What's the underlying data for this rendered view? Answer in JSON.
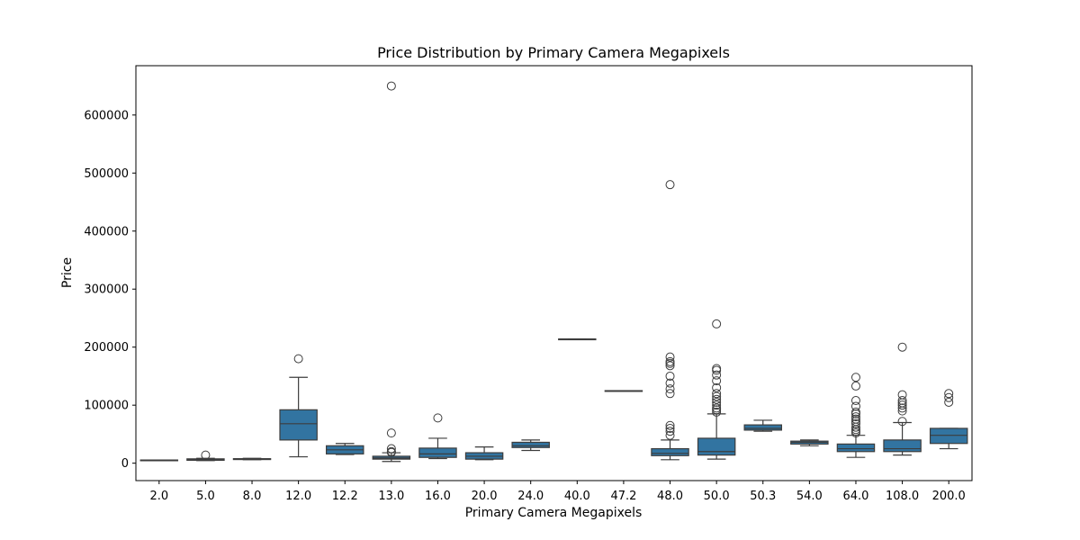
{
  "chart_data": {
    "type": "box",
    "title": "Price Distribution by Primary Camera Megapixels",
    "xlabel": "Primary Camera Megapixels",
    "ylabel": "Price",
    "ylim": [
      -30000,
      685000
    ],
    "yticks": [
      0,
      100000,
      200000,
      300000,
      400000,
      500000,
      600000
    ],
    "grid": false,
    "box_color": "#3274a1",
    "line_color": "#3d3d3d",
    "categories": [
      "2.0",
      "5.0",
      "8.0",
      "12.0",
      "12.2",
      "13.0",
      "16.0",
      "20.0",
      "24.0",
      "40.0",
      "47.2",
      "48.0",
      "50.0",
      "50.3",
      "54.0",
      "64.0",
      "108.0",
      "200.0"
    ],
    "boxes": [
      {
        "category": "2.0",
        "whislo": 5000,
        "q1": 5000,
        "med": 5300,
        "q3": 5500,
        "whishi": 5600,
        "fliers": []
      },
      {
        "category": "5.0",
        "whislo": 4500,
        "q1": 5000,
        "med": 6000,
        "q3": 7500,
        "whishi": 8500,
        "fliers": [
          14000
        ]
      },
      {
        "category": "8.0",
        "whislo": 6000,
        "q1": 6300,
        "med": 7000,
        "q3": 7800,
        "whishi": 8500,
        "fliers": []
      },
      {
        "category": "12.0",
        "whislo": 11000,
        "q1": 40000,
        "med": 68000,
        "q3": 92000,
        "whishi": 148000,
        "fliers": [
          180000
        ]
      },
      {
        "category": "12.2",
        "whislo": 15000,
        "q1": 16000,
        "med": 23000,
        "q3": 30000,
        "whishi": 34000,
        "fliers": []
      },
      {
        "category": "13.0",
        "whislo": 3000,
        "q1": 7000,
        "med": 9000,
        "q3": 12000,
        "whishi": 18000,
        "fliers": [
          18500,
          20000,
          25000,
          52000,
          650000
        ]
      },
      {
        "category": "16.0",
        "whislo": 8000,
        "q1": 10000,
        "med": 16000,
        "q3": 26000,
        "whishi": 43000,
        "fliers": [
          78000
        ]
      },
      {
        "category": "20.0",
        "whislo": 6000,
        "q1": 7000,
        "med": 12000,
        "q3": 18000,
        "whishi": 28000,
        "fliers": []
      },
      {
        "category": "24.0",
        "whislo": 22000,
        "q1": 27000,
        "med": 30000,
        "q3": 36000,
        "whishi": 40000,
        "fliers": []
      },
      {
        "category": "40.0",
        "whislo": 214000,
        "q1": 214000,
        "med": 214000,
        "q3": 214000,
        "whishi": 214000,
        "fliers": []
      },
      {
        "category": "47.2",
        "whislo": 125000,
        "q1": 125000,
        "med": 125000,
        "q3": 125000,
        "whishi": 125000,
        "fliers": []
      },
      {
        "category": "48.0",
        "whislo": 6000,
        "q1": 13000,
        "med": 17000,
        "q3": 25000,
        "whishi": 40000,
        "fliers": [
          48000,
          55000,
          60000,
          65000,
          120000,
          128000,
          138000,
          150000,
          168000,
          172000,
          175000,
          183000,
          480000
        ]
      },
      {
        "category": "50.0",
        "whislo": 7000,
        "q1": 14000,
        "med": 20000,
        "q3": 43000,
        "whishi": 85000,
        "fliers": [
          88000,
          92000,
          95000,
          100000,
          105000,
          110000,
          115000,
          120000,
          130000,
          142000,
          152000,
          160000,
          163000,
          240000
        ]
      },
      {
        "category": "50.3",
        "whislo": 55000,
        "q1": 57000,
        "med": 60000,
        "q3": 66000,
        "whishi": 74000,
        "fliers": []
      },
      {
        "category": "54.0",
        "whislo": 30000,
        "q1": 33000,
        "med": 36000,
        "q3": 38000,
        "whishi": 40000,
        "fliers": []
      },
      {
        "category": "64.0",
        "whislo": 10000,
        "q1": 20000,
        "med": 25000,
        "q3": 33000,
        "whishi": 48000,
        "fliers": [
          52000,
          55000,
          58000,
          62000,
          68000,
          72000,
          76000,
          80000,
          85000,
          88000,
          98000,
          108000,
          133000,
          148000
        ]
      },
      {
        "category": "108.0",
        "whislo": 14000,
        "q1": 20000,
        "med": 25000,
        "q3": 40000,
        "whishi": 70000,
        "fliers": [
          72000,
          90000,
          95000,
          100000,
          104000,
          108000,
          118000,
          200000
        ]
      },
      {
        "category": "200.0",
        "whislo": 25000,
        "q1": 34000,
        "med": 48000,
        "q3": 60000,
        "whishi": 60000,
        "fliers": [
          105000,
          113000,
          120000
        ]
      }
    ]
  }
}
